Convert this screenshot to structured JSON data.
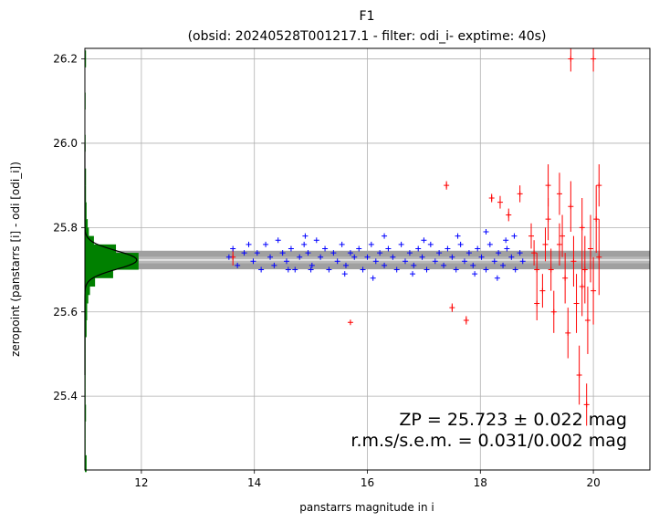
{
  "chart_data": {
    "type": "scatter",
    "title": "F1",
    "subtitle": "(obsid: 20240528T001217.1 - filter: odi_i- exptime: 40s)",
    "xlabel": "panstarrs magnitude in i",
    "ylabel": "zeropoint (panstarrs [i] - odi [odi_i])",
    "xlim": [
      11.0,
      21.0
    ],
    "ylim": [
      25.225,
      26.225
    ],
    "xticks": [
      "12",
      "14",
      "16",
      "18",
      "20"
    ],
    "yticks": [
      "25.4",
      "25.6",
      "25.8",
      "26.0",
      "26.2"
    ],
    "xtick_values": [
      12,
      14,
      16,
      18,
      20
    ],
    "ytick_values": [
      25.4,
      25.6,
      25.8,
      26.0,
      26.2
    ],
    "grid": true,
    "zeropoint": 25.723,
    "zeropoint_err": 0.022,
    "rms": 0.031,
    "sem": 0.002,
    "band_inner": [
      25.715,
      25.731
    ],
    "band_outer": [
      25.701,
      25.745
    ],
    "series_colors": {
      "used": "#0000ff",
      "rejected": "#ff0000",
      "histogram": "#008000",
      "fit": "#000000",
      "band": "#a0a0a0"
    },
    "used_points": [
      [
        13.55,
        25.73
      ],
      [
        13.62,
        25.75
      ],
      [
        13.7,
        25.71
      ],
      [
        13.82,
        25.74
      ],
      [
        13.9,
        25.76
      ],
      [
        13.98,
        25.72
      ],
      [
        14.05,
        25.74
      ],
      [
        14.12,
        25.7
      ],
      [
        14.2,
        25.76
      ],
      [
        14.28,
        25.73
      ],
      [
        14.35,
        25.71
      ],
      [
        14.42,
        25.77
      ],
      [
        14.5,
        25.74
      ],
      [
        14.57,
        25.72
      ],
      [
        14.65,
        25.75
      ],
      [
        14.72,
        25.7
      ],
      [
        14.8,
        25.73
      ],
      [
        14.88,
        25.76
      ],
      [
        14.95,
        25.74
      ],
      [
        15.02,
        25.71
      ],
      [
        15.1,
        25.77
      ],
      [
        15.17,
        25.73
      ],
      [
        15.25,
        25.75
      ],
      [
        15.32,
        25.7
      ],
      [
        15.4,
        25.74
      ],
      [
        15.47,
        25.72
      ],
      [
        15.55,
        25.76
      ],
      [
        15.62,
        25.71
      ],
      [
        15.7,
        25.74
      ],
      [
        15.77,
        25.73
      ],
      [
        15.85,
        25.75
      ],
      [
        15.92,
        25.7
      ],
      [
        16.0,
        25.73
      ],
      [
        16.07,
        25.76
      ],
      [
        16.15,
        25.72
      ],
      [
        16.22,
        25.74
      ],
      [
        16.3,
        25.71
      ],
      [
        16.37,
        25.75
      ],
      [
        16.45,
        25.73
      ],
      [
        16.52,
        25.7
      ],
      [
        16.6,
        25.76
      ],
      [
        16.67,
        25.72
      ],
      [
        16.75,
        25.74
      ],
      [
        16.82,
        25.71
      ],
      [
        16.9,
        25.75
      ],
      [
        16.97,
        25.73
      ],
      [
        17.05,
        25.7
      ],
      [
        17.12,
        25.76
      ],
      [
        17.2,
        25.72
      ],
      [
        17.27,
        25.74
      ],
      [
        17.35,
        25.71
      ],
      [
        17.42,
        25.75
      ],
      [
        17.5,
        25.73
      ],
      [
        17.57,
        25.7
      ],
      [
        17.65,
        25.76
      ],
      [
        17.72,
        25.72
      ],
      [
        17.8,
        25.74
      ],
      [
        17.87,
        25.71
      ],
      [
        17.95,
        25.75
      ],
      [
        18.02,
        25.73
      ],
      [
        18.1,
        25.7
      ],
      [
        18.17,
        25.76
      ],
      [
        18.25,
        25.72
      ],
      [
        18.32,
        25.74
      ],
      [
        18.4,
        25.71
      ],
      [
        18.47,
        25.75
      ],
      [
        18.55,
        25.73
      ],
      [
        18.62,
        25.7
      ],
      [
        18.7,
        25.74
      ],
      [
        18.75,
        25.72
      ],
      [
        18.45,
        25.77
      ],
      [
        18.6,
        25.78
      ],
      [
        14.9,
        25.78
      ],
      [
        16.3,
        25.78
      ],
      [
        17.9,
        25.69
      ],
      [
        18.3,
        25.68
      ],
      [
        16.8,
        25.69
      ],
      [
        15.6,
        25.69
      ],
      [
        14.6,
        25.7
      ],
      [
        17.0,
        25.77
      ],
      [
        17.6,
        25.78
      ],
      [
        18.1,
        25.79
      ],
      [
        16.1,
        25.68
      ],
      [
        15.0,
        25.7
      ]
    ],
    "rejected_points": [
      [
        13.62,
        25.73,
        0.02
      ],
      [
        15.7,
        25.575,
        0.005
      ],
      [
        17.4,
        25.9,
        0.01
      ],
      [
        17.5,
        25.61,
        0.01
      ],
      [
        17.75,
        25.58,
        0.01
      ],
      [
        18.2,
        25.87,
        0.01
      ],
      [
        18.35,
        25.86,
        0.015
      ],
      [
        18.5,
        25.83,
        0.015
      ],
      [
        18.7,
        25.88,
        0.02
      ],
      [
        18.9,
        25.78,
        0.03
      ],
      [
        19.0,
        25.7,
        0.04
      ],
      [
        19.1,
        25.65,
        0.04
      ],
      [
        19.2,
        25.82,
        0.05
      ],
      [
        19.3,
        25.6,
        0.05
      ],
      [
        19.4,
        25.76,
        0.05
      ],
      [
        19.5,
        25.68,
        0.06
      ],
      [
        19.55,
        25.55,
        0.06
      ],
      [
        19.6,
        25.85,
        0.06
      ],
      [
        19.7,
        25.62,
        0.07
      ],
      [
        19.75,
        25.45,
        0.07
      ],
      [
        19.8,
        25.8,
        0.07
      ],
      [
        19.85,
        25.7,
        0.08
      ],
      [
        19.9,
        25.58,
        0.08
      ],
      [
        19.95,
        25.75,
        0.08
      ],
      [
        19.88,
        25.38,
        0.05
      ],
      [
        20.0,
        25.65,
        0.08
      ],
      [
        20.05,
        25.82,
        0.08
      ],
      [
        20.1,
        25.73,
        0.09
      ],
      [
        20.1,
        25.9,
        0.05
      ],
      [
        19.6,
        26.2,
        0.03
      ],
      [
        20.0,
        26.2,
        0.03
      ],
      [
        19.2,
        25.9,
        0.05
      ],
      [
        19.4,
        25.88,
        0.05
      ],
      [
        19.0,
        25.62,
        0.04
      ],
      [
        18.95,
        25.74,
        0.03
      ],
      [
        19.25,
        25.7,
        0.05
      ],
      [
        19.65,
        25.72,
        0.06
      ],
      [
        19.45,
        25.78,
        0.05
      ],
      [
        19.15,
        25.76,
        0.04
      ],
      [
        19.8,
        25.66,
        0.07
      ]
    ],
    "histogram": [
      [
        25.24,
        0.03
      ],
      [
        25.28,
        0.0
      ],
      [
        25.32,
        0.0
      ],
      [
        25.36,
        0.02
      ],
      [
        25.4,
        0.0
      ],
      [
        25.44,
        0.01
      ],
      [
        25.48,
        0.0
      ],
      [
        25.52,
        0.01
      ],
      [
        25.56,
        0.03
      ],
      [
        25.6,
        0.04
      ],
      [
        25.64,
        0.06
      ],
      [
        25.66,
        0.09
      ],
      [
        25.68,
        0.18
      ],
      [
        25.7,
        0.5
      ],
      [
        25.72,
        0.95
      ],
      [
        25.74,
        0.55
      ],
      [
        25.76,
        0.16
      ],
      [
        25.78,
        0.07
      ],
      [
        25.8,
        0.05
      ],
      [
        25.84,
        0.03
      ],
      [
        25.88,
        0.02
      ],
      [
        25.92,
        0.02
      ],
      [
        26.0,
        0.01
      ],
      [
        26.1,
        0.01
      ],
      [
        26.2,
        0.02
      ]
    ],
    "hist_max_x": 1.0
  },
  "annotation": {
    "zp_line": "ZP = 25.723 ± 0.022 mag",
    "rms_line": "r.m.s/s.e.m. = 0.031/0.002 mag"
  }
}
